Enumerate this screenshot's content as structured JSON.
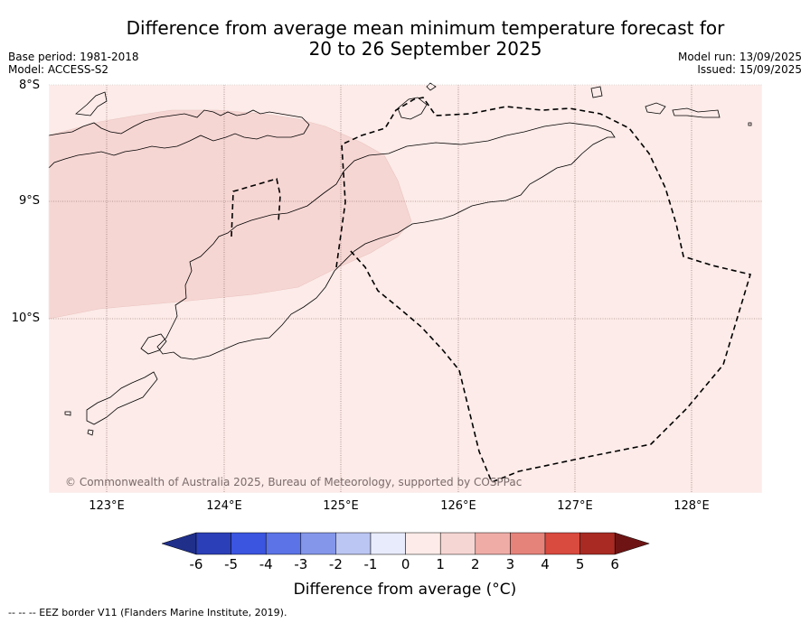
{
  "title_line1": "Difference from average mean minimum temperature forecast for",
  "title_line2": "20 to 26 September 2025",
  "meta": {
    "base_period": "Base period: 1981-2018",
    "model": "Model: ACCESS-S2",
    "model_run": "Model run: 13/09/2025",
    "issued": "Issued: 15/09/2025"
  },
  "map": {
    "lat_labels": [
      "8°S",
      "9°S",
      "10°S"
    ],
    "lon_labels": [
      "123°E",
      "124°E",
      "125°E",
      "126°E",
      "127°E",
      "128°E"
    ],
    "extent": {
      "lon_min": 122.5,
      "lon_max": 128.6,
      "lat_min": -11.5,
      "lat_max": -8.0
    },
    "copyright": "© Commonwealth of Australia 2025, Bureau of Meteorology, supported by COSPPac",
    "shading": {
      "background_class": "0 to 1",
      "background_color": "#fcebe8",
      "region_class": "1 to 2",
      "region_color": "#f6d6d3"
    }
  },
  "colorbar": {
    "label": "Difference from average (°C)",
    "ticks": [
      "-6",
      "-5",
      "-4",
      "-3",
      "-2",
      "-1",
      "0",
      "1",
      "2",
      "3",
      "4",
      "5",
      "6"
    ],
    "colors": [
      "#1f2f8a",
      "#2b3fb8",
      "#3b55e0",
      "#5b73e6",
      "#8496ea",
      "#bcc6f3",
      "#e8ebfb",
      "#fcebe8",
      "#f6d6d3",
      "#efaca7",
      "#e5837a",
      "#d94a3f",
      "#a82a22",
      "#6e1414"
    ]
  },
  "footnote": "--  --  -- EEZ border V11 (Flanders Marine Institute, 2019)."
}
